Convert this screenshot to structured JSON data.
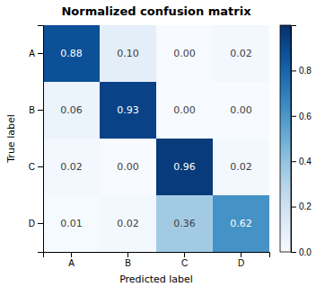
{
  "chart_data": {
    "type": "heatmap",
    "title": "Normalized confusion matrix",
    "categories": [
      "A",
      "B",
      "C",
      "D"
    ],
    "values": [
      [
        0.88,
        0.1,
        0.0,
        0.02
      ],
      [
        0.06,
        0.93,
        0.0,
        0.0
      ],
      [
        0.02,
        0.0,
        0.96,
        0.02
      ],
      [
        0.01,
        0.02,
        0.36,
        0.62
      ]
    ],
    "value_labels": [
      [
        "0.88",
        "0.10",
        "0.00",
        "0.02"
      ],
      [
        "0.06",
        "0.93",
        "0.00",
        "0.00"
      ],
      [
        "0.02",
        "0.00",
        "0.96",
        "0.02"
      ],
      [
        "0.01",
        "0.02",
        "0.36",
        "0.62"
      ]
    ],
    "data_labels": true,
    "xlabel": "Predicted label",
    "ylabel": "True label",
    "color": "Blues",
    "colorbar_range": [
      0.0,
      1.0
    ],
    "colorbar_ticks": [
      {
        "value": 0.0,
        "label": "0.0"
      },
      {
        "value": 0.2,
        "label": "0.2"
      },
      {
        "value": 0.4,
        "label": "0.4"
      },
      {
        "value": 0.6,
        "label": "0.6"
      },
      {
        "value": 0.8,
        "label": "0.8"
      }
    ]
  }
}
